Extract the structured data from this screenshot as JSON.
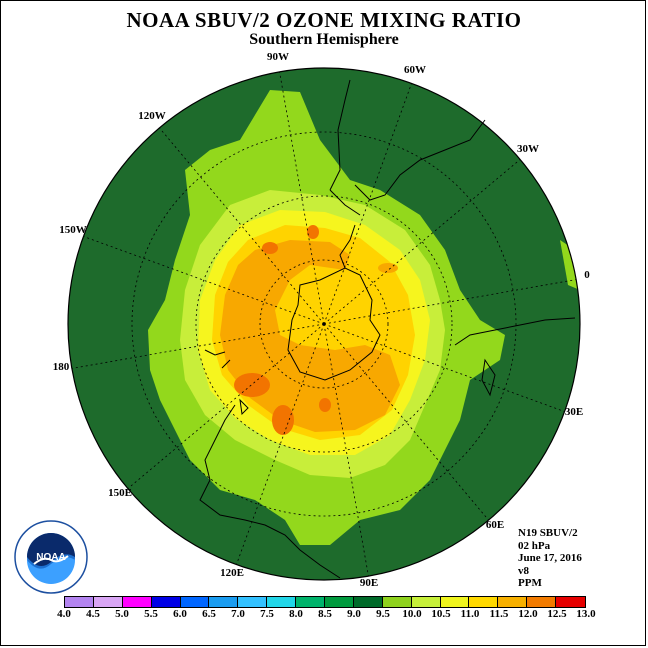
{
  "title": "NOAA SBUV/2 OZONE MIXING RATIO",
  "subtitle": "Southern Hemisphere",
  "longitude_labels": [
    "90W",
    "60W",
    "30W",
    "0",
    "30E",
    "60E",
    "90E",
    "120E",
    "150E",
    "180",
    "150W",
    "120W"
  ],
  "info": {
    "satellite": "N19 SBUV/2",
    "level": "02 hPa",
    "date": "June 17, 2016",
    "version": "v8",
    "units": "PPM"
  },
  "logo_text": "NOAA",
  "colorbar": {
    "ticks": [
      "4.0",
      "4.5",
      "5.0",
      "5.5",
      "6.0",
      "6.5",
      "7.0",
      "7.5",
      "8.0",
      "8.5",
      "9.0",
      "9.5",
      "10.0",
      "10.5",
      "11.0",
      "11.5",
      "12.0",
      "12.5",
      "13.0"
    ],
    "colors": [
      "#b384f0",
      "#d9a6f5",
      "#ff00ff",
      "#0000e6",
      "#0066ff",
      "#1a9cf0",
      "#33c1ff",
      "#22d6e8",
      "#00b36b",
      "#009a3e",
      "#006b2a",
      "#8fd21e",
      "#c7f03a",
      "#f0f51e",
      "#ffd900",
      "#f7b000",
      "#f27b00",
      "#e60000",
      "#8b5a2b"
    ]
  },
  "colors": {
    "background_level": "#1e6b2c",
    "level_9_5": "#93d81c",
    "level_10_0": "#c8ee3a",
    "level_10_5": "#f6f51e",
    "level_11_0": "#ffd300",
    "level_11_5": "#f8a800",
    "level_12_0": "#f27400"
  }
}
